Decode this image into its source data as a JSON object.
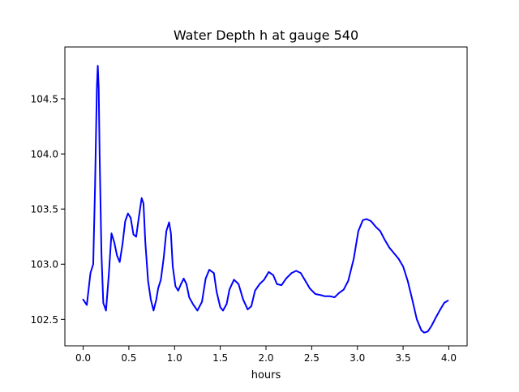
{
  "chart_data": {
    "type": "line",
    "title": "Water Depth h at gauge 540",
    "xlabel": "hours",
    "ylabel": "",
    "xlim": [
      -0.2,
      4.2
    ],
    "ylim": [
      102.26,
      104.97
    ],
    "xticks": [
      0.0,
      0.5,
      1.0,
      1.5,
      2.0,
      2.5,
      3.0,
      3.5,
      4.0
    ],
    "xtick_labels": [
      "0.0",
      "0.5",
      "1.0",
      "1.5",
      "2.0",
      "2.5",
      "3.0",
      "3.5",
      "4.0"
    ],
    "yticks": [
      102.5,
      103.0,
      103.5,
      104.0,
      104.5
    ],
    "ytick_labels": [
      "102.5",
      "103.0",
      "103.5",
      "104.0",
      "104.5"
    ],
    "grid": false,
    "line_color": "#0000ff",
    "series": [
      {
        "x": [
          0.0,
          0.04,
          0.08,
          0.11,
          0.13,
          0.15,
          0.16,
          0.17,
          0.18,
          0.2,
          0.22,
          0.25,
          0.28,
          0.31,
          0.34,
          0.37,
          0.4,
          0.43,
          0.46,
          0.49,
          0.52,
          0.55,
          0.58,
          0.61,
          0.64,
          0.66,
          0.68,
          0.71,
          0.74,
          0.77,
          0.8,
          0.82,
          0.85,
          0.88,
          0.91,
          0.94,
          0.96,
          0.98,
          1.01,
          1.04,
          1.07,
          1.1,
          1.13,
          1.16,
          1.2,
          1.25,
          1.3,
          1.34,
          1.38,
          1.43,
          1.46,
          1.5,
          1.53,
          1.57,
          1.6,
          1.65,
          1.7,
          1.75,
          1.8,
          1.84,
          1.88,
          1.93,
          1.98,
          2.03,
          2.08,
          2.12,
          2.17,
          2.22,
          2.28,
          2.33,
          2.38,
          2.43,
          2.48,
          2.54,
          2.6,
          2.64,
          2.7,
          2.75,
          2.8,
          2.85,
          2.9,
          2.96,
          3.01,
          3.06,
          3.1,
          3.15,
          3.2,
          3.25,
          3.3,
          3.35,
          3.4,
          3.45,
          3.5,
          3.55,
          3.6,
          3.65,
          3.7,
          3.73,
          3.77,
          3.81,
          3.86,
          3.9,
          3.95,
          3.99
        ],
        "y": [
          102.68,
          102.63,
          102.92,
          103.0,
          103.7,
          104.6,
          104.8,
          104.6,
          104.0,
          103.1,
          102.65,
          102.58,
          102.9,
          103.28,
          103.2,
          103.08,
          103.02,
          103.18,
          103.39,
          103.46,
          103.42,
          103.27,
          103.25,
          103.43,
          103.6,
          103.55,
          103.2,
          102.85,
          102.68,
          102.58,
          102.68,
          102.78,
          102.86,
          103.05,
          103.3,
          103.38,
          103.28,
          102.98,
          102.8,
          102.76,
          102.82,
          102.87,
          102.82,
          102.7,
          102.64,
          102.58,
          102.66,
          102.87,
          102.95,
          102.92,
          102.75,
          102.61,
          102.58,
          102.64,
          102.77,
          102.86,
          102.82,
          102.68,
          102.59,
          102.62,
          102.76,
          102.82,
          102.86,
          102.93,
          102.9,
          102.82,
          102.81,
          102.87,
          102.92,
          102.94,
          102.92,
          102.85,
          102.78,
          102.73,
          102.72,
          102.71,
          102.71,
          102.7,
          102.74,
          102.77,
          102.85,
          103.05,
          103.3,
          103.4,
          103.41,
          103.39,
          103.34,
          103.3,
          103.22,
          103.15,
          103.1,
          103.05,
          102.98,
          102.85,
          102.68,
          102.5,
          102.4,
          102.38,
          102.39,
          102.44,
          102.52,
          102.58,
          102.65,
          102.67
        ]
      }
    ]
  }
}
